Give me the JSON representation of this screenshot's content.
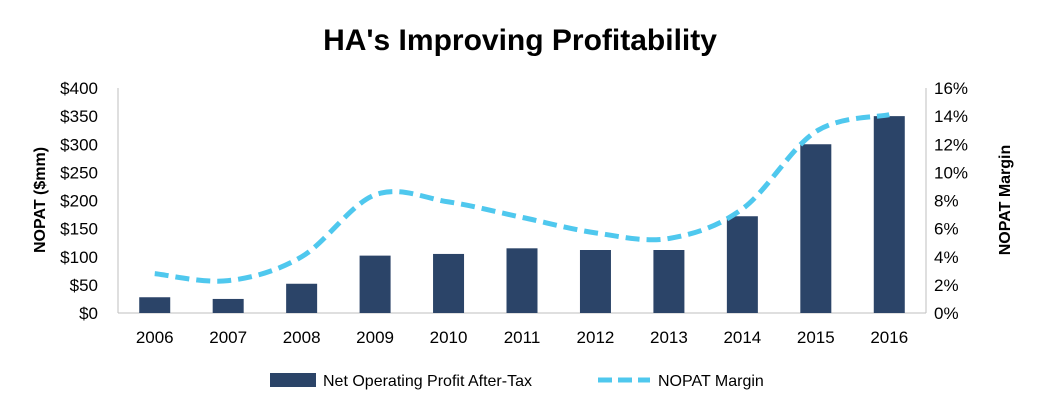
{
  "chart_data": {
    "type": "bar",
    "title": "HA's Improving Profitability",
    "categories": [
      "2006",
      "2007",
      "2008",
      "2009",
      "2010",
      "2011",
      "2012",
      "2013",
      "2014",
      "2015",
      "2016"
    ],
    "series": [
      {
        "name": "Net Operating Profit After-Tax",
        "type": "bar",
        "axis": "left",
        "color": "#2b4468",
        "values": [
          28,
          25,
          52,
          102,
          105,
          115,
          112,
          112,
          172,
          300,
          350
        ]
      },
      {
        "name": "NOPAT Margin",
        "type": "line",
        "style": "dashed",
        "axis": "right",
        "color": "#4fc8ee",
        "values": [
          2.8,
          2.3,
          4.0,
          8.4,
          7.9,
          6.8,
          5.7,
          5.3,
          7.4,
          12.9,
          14.1
        ]
      }
    ],
    "ylabel": "NOPAT ($mm)",
    "ylabel_right": "NOPAT Margin",
    "ylim": [
      0,
      400
    ],
    "ylim_right": [
      0,
      16
    ],
    "yticks": [
      "$0",
      "$50",
      "$100",
      "$150",
      "$200",
      "$250",
      "$300",
      "$350",
      "$400"
    ],
    "yticks_right": [
      "0%",
      "2%",
      "4%",
      "6%",
      "8%",
      "10%",
      "12%",
      "14%",
      "16%"
    ],
    "grid": false,
    "legend_position": "bottom"
  }
}
